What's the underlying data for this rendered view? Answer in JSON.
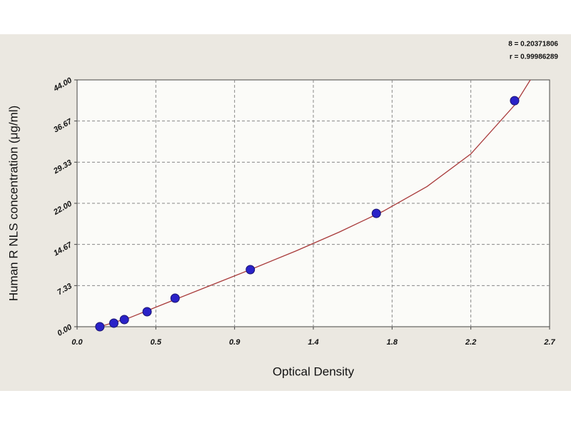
{
  "chart_data": {
    "type": "scatter",
    "x_label": "Optical Density",
    "y_label": "Human R NLS concentration (μg/ml)",
    "annotations": [
      "8 = 0.20371806",
      "r = 0.99986289"
    ],
    "x": [
      0.13,
      0.21,
      0.27,
      0.4,
      0.56,
      0.99,
      1.71,
      2.5
    ],
    "values": [
      0,
      0.64,
      1.27,
      2.67,
      5.09,
      10.17,
      20.2,
      40.3
    ],
    "color": "#2a22c8",
    "fit": {
      "x": [
        0.13,
        0.3,
        0.5,
        0.75,
        1.0,
        1.25,
        1.5,
        1.75,
        2.0,
        2.25,
        2.5,
        2.6
      ],
      "values": [
        0,
        1.6,
        4.1,
        7.2,
        10.3,
        13.5,
        16.9,
        20.6,
        25,
        30.8,
        39.5,
        44.5
      ],
      "color": "#a83a3a"
    },
    "xlim": [
      0,
      2.7
    ],
    "xticks": [
      {
        "value": 0,
        "label": "0.0"
      },
      {
        "value": 0.45,
        "label": "0.5"
      },
      0.9,
      {
        "value": 1.35,
        "label": "1.4"
      },
      1.8,
      {
        "value": 2.25,
        "label": "2.2"
      },
      2.7
    ],
    "ylim": [
      0,
      44
    ],
    "yticks": [
      {
        "value": 0,
        "label": "0.00"
      },
      7.33,
      14.67,
      {
        "value": 22,
        "label": "22.00"
      },
      29.33,
      36.67,
      {
        "value": 44,
        "label": "44.00"
      }
    ],
    "grid": true
  }
}
